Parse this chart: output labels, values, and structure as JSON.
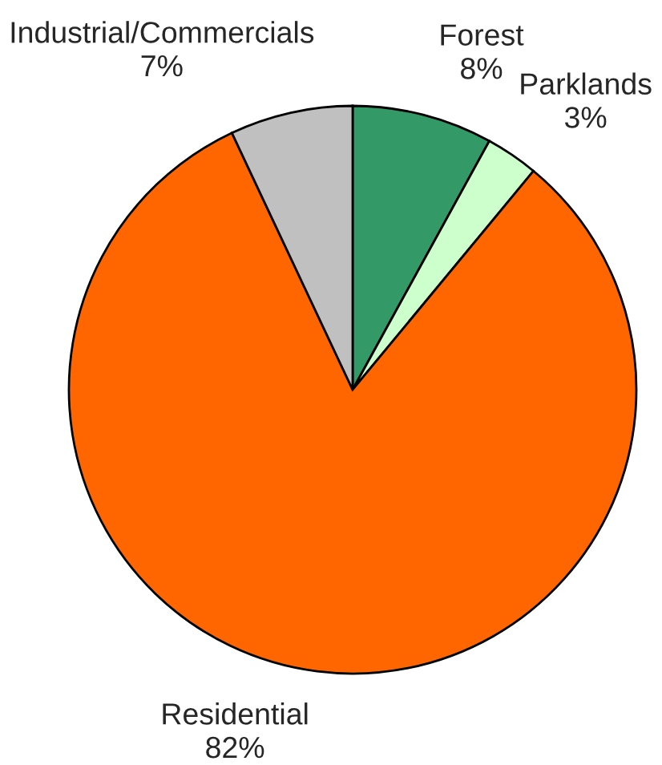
{
  "chart_data": {
    "type": "pie",
    "categories": [
      "Forest",
      "Parklands",
      "Residential",
      "Industrial/Commercials"
    ],
    "values": [
      8,
      3,
      82,
      7
    ],
    "colors": [
      "#339966",
      "#ccffcc",
      "#ff6600",
      "#c0c0c0"
    ],
    "value_labels": [
      "8%",
      "3%",
      "82%",
      "7%"
    ]
  }
}
